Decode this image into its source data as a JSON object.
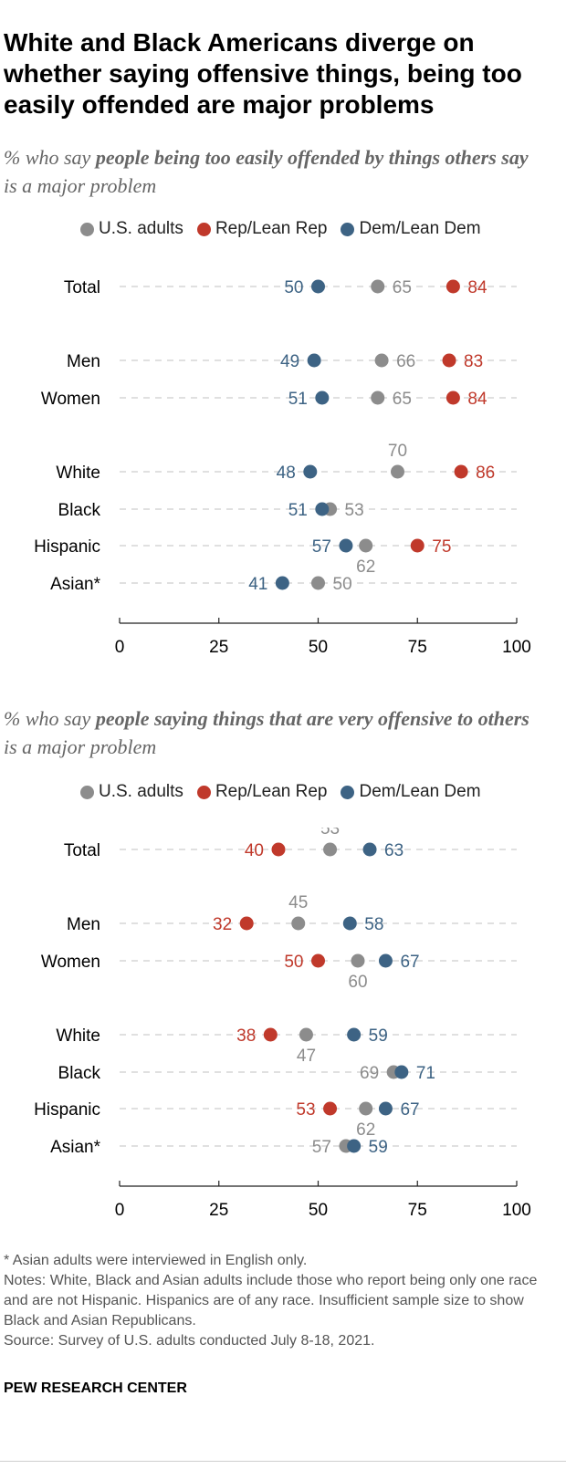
{
  "title": "White and Black Americans diverge on whether saying offensive things, being too easily offended are major problems",
  "colors": {
    "us_adults": "#8c8c8c",
    "rep": "#c0392b",
    "dem": "#3d6384",
    "guide": "#d6d6d6",
    "axis": "#222222"
  },
  "legend": {
    "us_adults": "U.S. adults",
    "rep": "Rep/Lean Rep",
    "dem": "Dem/Lean Dem"
  },
  "chart_data": [
    {
      "type": "dot plot",
      "subtitle_lead": "% who say",
      "subtitle_bold": "people being too easily offended by things others say",
      "subtitle_tail": "is a major problem",
      "xlim": [
        0,
        100
      ],
      "xticks": [
        "0",
        "25",
        "50",
        "75",
        "100"
      ],
      "categories": [
        "Total",
        "Men",
        "Women",
        "White",
        "Black",
        "Hispanic",
        "Asian*"
      ],
      "series": [
        {
          "name": "U.S. adults",
          "values": [
            65,
            66,
            65,
            70,
            53,
            62,
            50
          ]
        },
        {
          "name": "Rep/Lean Rep",
          "values": [
            84,
            83,
            84,
            86,
            null,
            75,
            null
          ]
        },
        {
          "name": "Dem/Lean Dem",
          "values": [
            50,
            49,
            51,
            48,
            51,
            57,
            41
          ]
        }
      ]
    },
    {
      "type": "dot plot",
      "subtitle_lead": "% who say",
      "subtitle_bold": "people saying things that are very offensive to others",
      "subtitle_tail": "is a major problem",
      "xlim": [
        0,
        100
      ],
      "xticks": [
        "0",
        "25",
        "50",
        "75",
        "100"
      ],
      "categories": [
        "Total",
        "Men",
        "Women",
        "White",
        "Black",
        "Hispanic",
        "Asian*"
      ],
      "series": [
        {
          "name": "U.S. adults",
          "values": [
            53,
            45,
            60,
            47,
            69,
            62,
            57
          ]
        },
        {
          "name": "Rep/Lean Rep",
          "values": [
            40,
            32,
            50,
            38,
            null,
            53,
            null
          ]
        },
        {
          "name": "Dem/Lean Dem",
          "values": [
            63,
            58,
            67,
            59,
            71,
            67,
            59
          ]
        }
      ]
    }
  ],
  "footnote_asian": "* Asian adults were interviewed in English only.",
  "notes": "Notes: White, Black and Asian adults include those who report being only one race and are not Hispanic. Hispanics are of any race. Insufficient sample size to show Black and Asian Republicans.",
  "source": "Source: Survey of U.S. adults conducted July 8-18, 2021.",
  "brand": "PEW RESEARCH CENTER"
}
